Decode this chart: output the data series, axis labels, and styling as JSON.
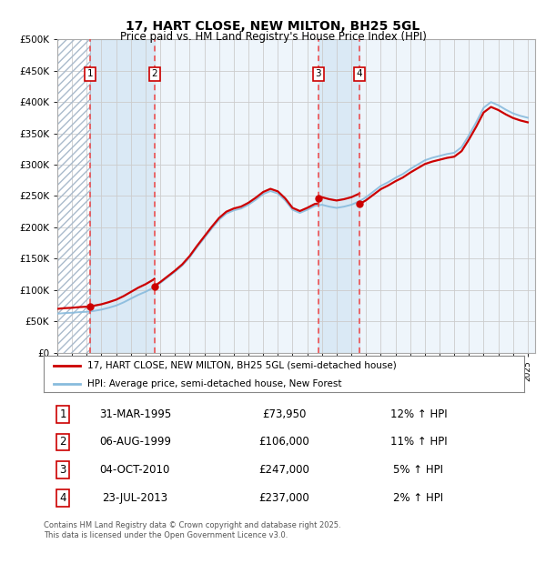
{
  "title": "17, HART CLOSE, NEW MILTON, BH25 5GL",
  "subtitle": "Price paid vs. HM Land Registry's House Price Index (HPI)",
  "legend_line1": "17, HART CLOSE, NEW MILTON, BH25 5GL (semi-detached house)",
  "legend_line2": "HPI: Average price, semi-detached house, New Forest",
  "footer": "Contains HM Land Registry data © Crown copyright and database right 2025.\nThis data is licensed under the Open Government Licence v3.0.",
  "sales": [
    {
      "num": 1,
      "date": "31-MAR-1995",
      "price": 73950,
      "pct": "12%",
      "dir": "↑"
    },
    {
      "num": 2,
      "date": "06-AUG-1999",
      "price": 106000,
      "pct": "11%",
      "dir": "↑"
    },
    {
      "num": 3,
      "date": "04-OCT-2010",
      "price": 247000,
      "pct": "5%",
      "dir": "↑"
    },
    {
      "num": 4,
      "date": "23-JUL-2013",
      "price": 237000,
      "pct": "2%",
      "dir": "↑"
    }
  ],
  "sale_years": [
    1995.25,
    1999.6,
    2010.75,
    2013.55
  ],
  "ylim": [
    0,
    500000
  ],
  "xlim": [
    1993,
    2025.5
  ],
  "yticks": [
    0,
    50000,
    100000,
    150000,
    200000,
    250000,
    300000,
    350000,
    400000,
    450000,
    500000
  ],
  "ytick_labels": [
    "£0",
    "£50K",
    "£100K",
    "£150K",
    "£200K",
    "£250K",
    "£300K",
    "£350K",
    "£400K",
    "£450K",
    "£500K"
  ],
  "price_color": "#cc0000",
  "hpi_line_color": "#88bbdd",
  "bg_color": "#ffffff",
  "plot_bg": "#eef5fb",
  "vline_color": "#ee4444",
  "grid_color": "#cccccc",
  "hpi_years": [
    1993,
    1993.5,
    1994,
    1994.5,
    1995,
    1995.5,
    1996,
    1996.5,
    1997,
    1997.5,
    1998,
    1998.5,
    1999,
    1999.5,
    2000,
    2000.5,
    2001,
    2001.5,
    2002,
    2002.5,
    2003,
    2003.5,
    2004,
    2004.5,
    2005,
    2005.5,
    2006,
    2006.5,
    2007,
    2007.5,
    2008,
    2008.5,
    2009,
    2009.5,
    2010,
    2010.5,
    2011,
    2011.5,
    2012,
    2012.5,
    2013,
    2013.5,
    2014,
    2014.5,
    2015,
    2015.5,
    2016,
    2016.5,
    2017,
    2017.5,
    2018,
    2018.5,
    2019,
    2019.5,
    2020,
    2020.5,
    2021,
    2021.5,
    2022,
    2022.5,
    2023,
    2023.5,
    2024,
    2024.5,
    2025
  ],
  "hpi_vals": [
    62000,
    63000,
    63500,
    64500,
    65000,
    66500,
    68500,
    71500,
    75000,
    80000,
    86000,
    92000,
    97000,
    103000,
    111000,
    120000,
    129000,
    139000,
    152000,
    168000,
    183000,
    198000,
    212000,
    222000,
    227000,
    230000,
    236000,
    244000,
    253000,
    258000,
    254000,
    243000,
    228000,
    223000,
    228000,
    234000,
    236000,
    233000,
    231000,
    233000,
    236000,
    241000,
    248000,
    257000,
    266000,
    272000,
    279000,
    285000,
    293000,
    300000,
    307000,
    311000,
    314000,
    317000,
    319000,
    328000,
    347000,
    368000,
    391000,
    400000,
    395000,
    388000,
    382000,
    378000,
    375000
  ]
}
